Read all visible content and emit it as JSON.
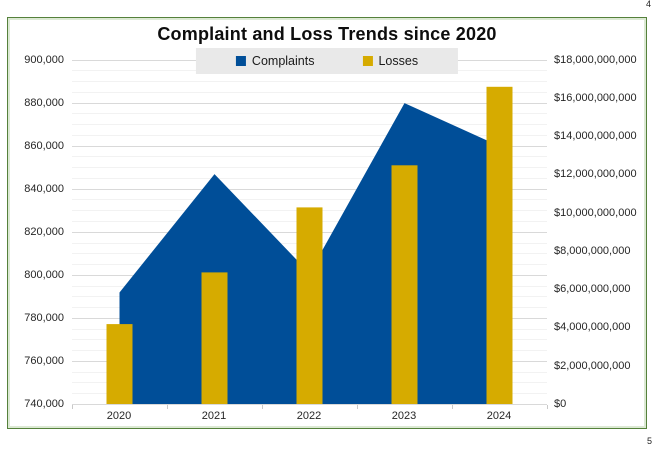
{
  "page": {
    "corner_number_top": "4",
    "corner_number_bottom": "5"
  },
  "chart": {
    "title": "Complaint and Loss Trends since 2020",
    "legend": {
      "items": [
        {
          "label": "Complaints",
          "color": "#004E98"
        },
        {
          "label": "Losses",
          "color": "#D6AB00"
        }
      ]
    },
    "frame_border_color": "#55813B",
    "legend_background": "#E9E9E9"
  },
  "chart_data": {
    "type": "combo",
    "title": "Complaint and Loss Trends since 2020",
    "categories": [
      "2020",
      "2021",
      "2022",
      "2023",
      "2024"
    ],
    "series": [
      {
        "name": "Complaints",
        "type": "area",
        "axis": "left",
        "color": "#004E98",
        "values": [
          792000,
          847000,
          801000,
          880000,
          860000
        ]
      },
      {
        "name": "Losses",
        "type": "bar",
        "axis": "right",
        "color": "#D6AB00",
        "values": [
          4200000000,
          6900000000,
          10300000000,
          12500000000,
          16600000000
        ]
      }
    ],
    "left_axis": {
      "min": 740000,
      "max": 900000,
      "major_step": 20000,
      "minor_step": 5000,
      "tick_labels": [
        "900,000",
        "880,000",
        "860,000",
        "840,000",
        "820,000",
        "800,000",
        "780,000",
        "760,000",
        "740,000"
      ]
    },
    "right_axis": {
      "min": 0,
      "max": 18000000000,
      "major_step": 2000000000,
      "tick_labels": [
        "$18,000,000,000",
        "$16,000,000,000",
        "$14,000,000,000",
        "$12,000,000,000",
        "$10,000,000,000",
        "$8,000,000,000",
        "$6,000,000,000",
        "$4,000,000,000",
        "$2,000,000,000",
        "$0"
      ]
    },
    "legend_position": "top-center",
    "grid": "horizontal major and minor gridlines"
  }
}
